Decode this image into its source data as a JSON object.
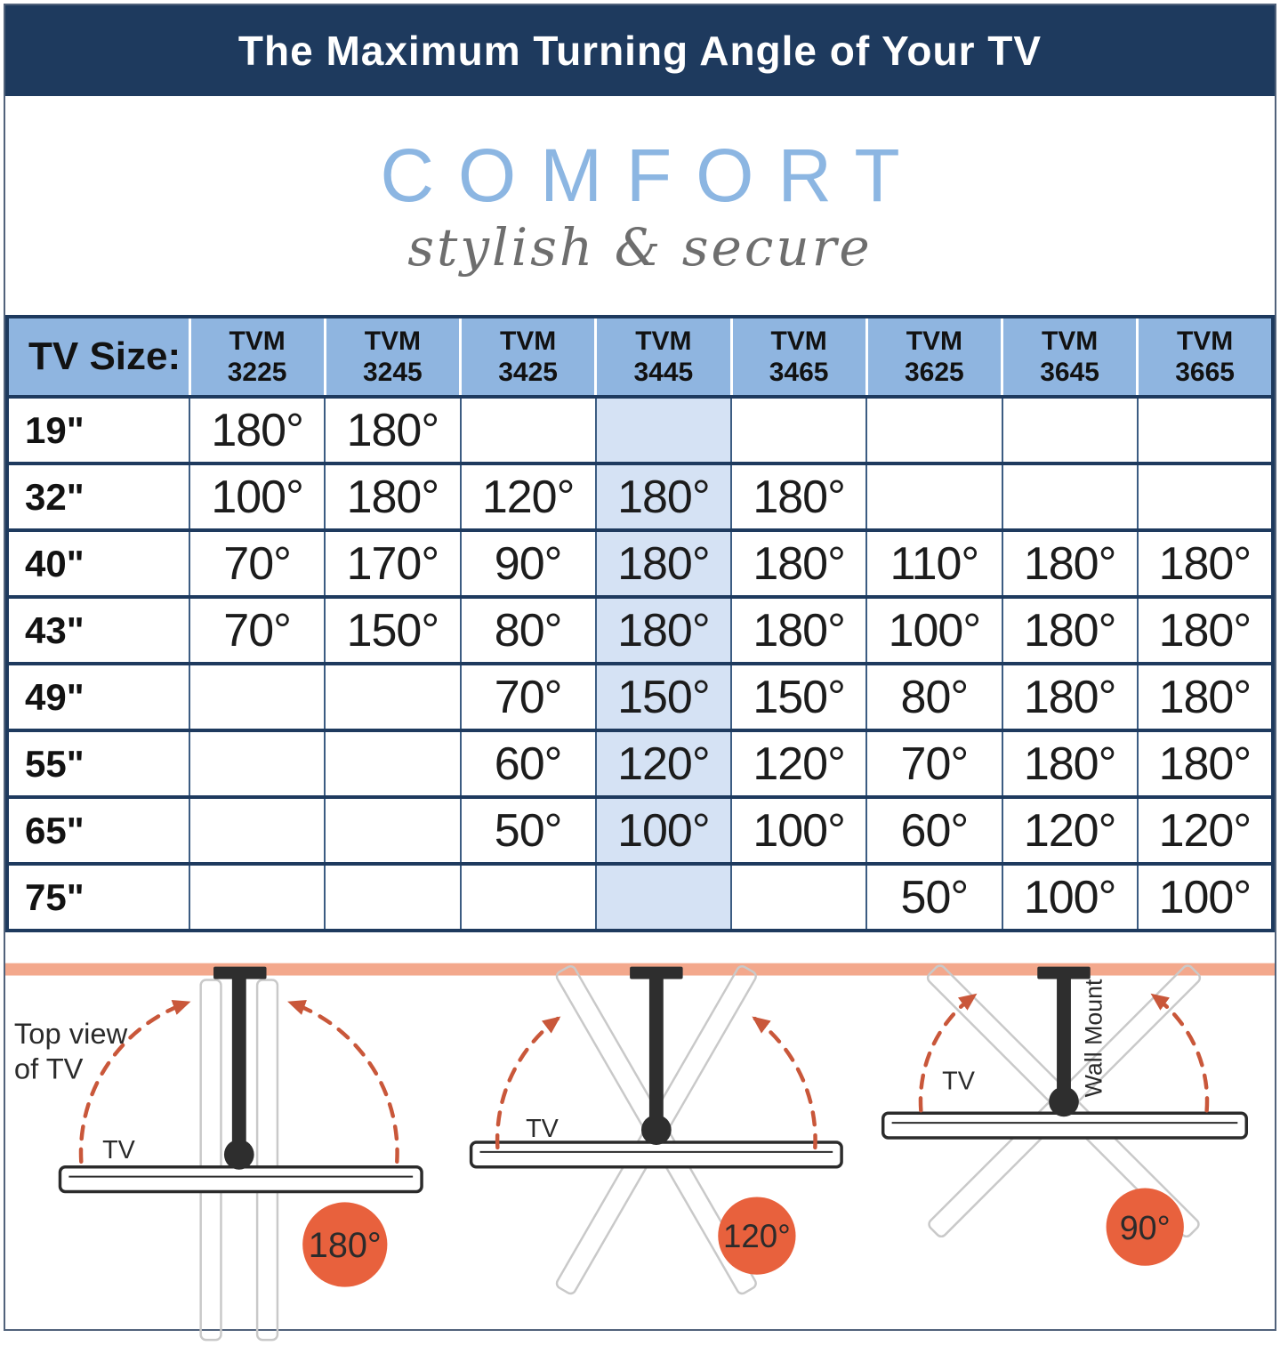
{
  "title_bar": {
    "title": "The Maximum Turning Angle of Your TV"
  },
  "logo": {
    "brand": "COMFORT",
    "tagline": "stylish & secure"
  },
  "table": {
    "corner_label": "TV Size:",
    "model_prefix": "TVM",
    "models": [
      "3225",
      "3245",
      "3425",
      "3445",
      "3465",
      "3625",
      "3645",
      "3665"
    ],
    "highlight_model": "3445",
    "highlight_column_index": 3,
    "rows": [
      {
        "size": "19\"",
        "values": [
          "180°",
          "180°",
          "",
          "",
          "",
          "",
          "",
          ""
        ]
      },
      {
        "size": "32\"",
        "values": [
          "100°",
          "180°",
          "120°",
          "180°",
          "180°",
          "",
          "",
          ""
        ]
      },
      {
        "size": "40\"",
        "values": [
          "70°",
          "170°",
          "90°",
          "180°",
          "180°",
          "110°",
          "180°",
          "180°"
        ]
      },
      {
        "size": "43\"",
        "values": [
          "70°",
          "150°",
          "80°",
          "180°",
          "180°",
          "100°",
          "180°",
          "180°"
        ]
      },
      {
        "size": "49\"",
        "values": [
          "",
          "",
          "70°",
          "150°",
          "150°",
          "80°",
          "180°",
          "180°"
        ]
      },
      {
        "size": "55\"",
        "values": [
          "",
          "",
          "60°",
          "120°",
          "120°",
          "70°",
          "180°",
          "180°"
        ]
      },
      {
        "size": "65\"",
        "values": [
          "",
          "",
          "50°",
          "100°",
          "100°",
          "60°",
          "120°",
          "120°"
        ]
      },
      {
        "size": "75\"",
        "values": [
          "",
          "",
          "",
          "",
          "",
          "50°",
          "100°",
          "100°"
        ]
      }
    ]
  },
  "diagrams": {
    "top_view_lines": [
      "Top view",
      "of TV"
    ],
    "tv_label": "TV",
    "wall_mount_label": "Wall Mount",
    "badges": [
      "180°",
      "120°",
      "90°"
    ]
  },
  "colors": {
    "navy_header": "#1e3a5e",
    "table_header_blue": "#8fb5e0",
    "highlight_column_blue": "#d5e2f4",
    "brand_blue": "#8cb6e2",
    "tagline_gray": "#6e6e6e",
    "wall_bar_salmon": "#f3a88c",
    "badge_orange": "#e8613d",
    "arrow_orange": "#c9573a"
  },
  "chart_data": {
    "type": "table",
    "title": "The Maximum Turning Angle of Your TV",
    "columns": [
      "TV Size:",
      "TVM 3225",
      "TVM 3245",
      "TVM 3425",
      "TVM 3445",
      "TVM 3465",
      "TVM 3625",
      "TVM 3645",
      "TVM 3665"
    ],
    "highlighted_column": "TVM 3445",
    "rows": [
      [
        "19\"",
        "180°",
        "180°",
        "",
        "",
        "",
        "",
        "",
        ""
      ],
      [
        "32\"",
        "100°",
        "180°",
        "120°",
        "180°",
        "180°",
        "",
        "",
        ""
      ],
      [
        "40\"",
        "70°",
        "170°",
        "90°",
        "180°",
        "180°",
        "110°",
        "180°",
        "180°"
      ],
      [
        "43\"",
        "70°",
        "150°",
        "80°",
        "180°",
        "180°",
        "100°",
        "180°",
        "180°"
      ],
      [
        "49\"",
        "",
        "",
        "70°",
        "150°",
        "150°",
        "80°",
        "180°",
        "180°"
      ],
      [
        "55\"",
        "",
        "",
        "60°",
        "120°",
        "120°",
        "70°",
        "180°",
        "180°"
      ],
      [
        "65\"",
        "",
        "",
        "50°",
        "100°",
        "100°",
        "60°",
        "120°",
        "120°"
      ],
      [
        "75\"",
        "",
        "",
        "",
        "",
        "",
        "50°",
        "100°",
        "100°"
      ]
    ],
    "diagram_turning_angles": [
      "180°",
      "120°",
      "90°"
    ]
  }
}
